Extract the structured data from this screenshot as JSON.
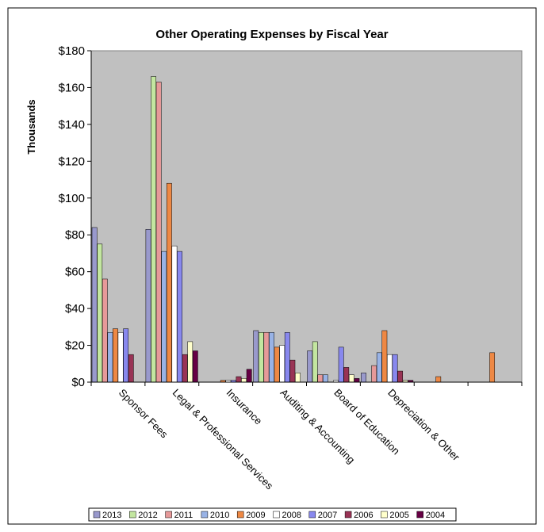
{
  "chart_data": {
    "type": "bar",
    "title": "Other Operating Expenses by Fiscal Year",
    "ylabel": "Thousands",
    "xlabel": "",
    "ylim": [
      0,
      180
    ],
    "yticks": [
      "$0",
      "$20",
      "$40",
      "$60",
      "$80",
      "$100",
      "$120",
      "$140",
      "$160",
      "$180"
    ],
    "grid": false,
    "legend_position": "bottom",
    "plot_background": "#c0c0c0",
    "categories": [
      "Sponsor Fees",
      "Legal & Professional Services",
      "Insurance",
      "Auditing & Accounting",
      "Board of Education",
      "Depreciation & Other",
      "",
      ""
    ],
    "series": [
      {
        "name": "2013",
        "color": "#9999cc",
        "values": [
          84,
          83,
          0,
          28,
          17,
          5,
          0,
          0
        ]
      },
      {
        "name": "2012",
        "color": "#c3e6a0",
        "values": [
          75,
          166,
          0,
          27,
          22,
          0,
          0,
          0
        ]
      },
      {
        "name": "2011",
        "color": "#e69999",
        "values": [
          56,
          163,
          0,
          27,
          4,
          9,
          0,
          0
        ]
      },
      {
        "name": "2010",
        "color": "#99b3e6",
        "values": [
          27,
          71,
          0,
          27,
          4,
          16,
          0,
          0
        ]
      },
      {
        "name": "2009",
        "color": "#ee8844",
        "values": [
          29,
          108,
          1,
          19,
          0,
          28,
          3,
          16
        ]
      },
      {
        "name": "2008",
        "color": "#ffffff",
        "values": [
          27,
          74,
          1,
          20,
          1,
          15,
          0,
          0
        ]
      },
      {
        "name": "2007",
        "color": "#8888ee",
        "values": [
          29,
          71,
          1,
          27,
          19,
          15,
          0,
          0
        ]
      },
      {
        "name": "2006",
        "color": "#993355",
        "values": [
          15,
          15,
          3,
          12,
          8,
          6,
          0,
          0
        ]
      },
      {
        "name": "2005",
        "color": "#ffffcc",
        "values": [
          0,
          22,
          2,
          5,
          4,
          1,
          0,
          0
        ]
      },
      {
        "name": "2004",
        "color": "#660044",
        "values": [
          0,
          17,
          7,
          0,
          2,
          1,
          0,
          0
        ]
      }
    ]
  }
}
